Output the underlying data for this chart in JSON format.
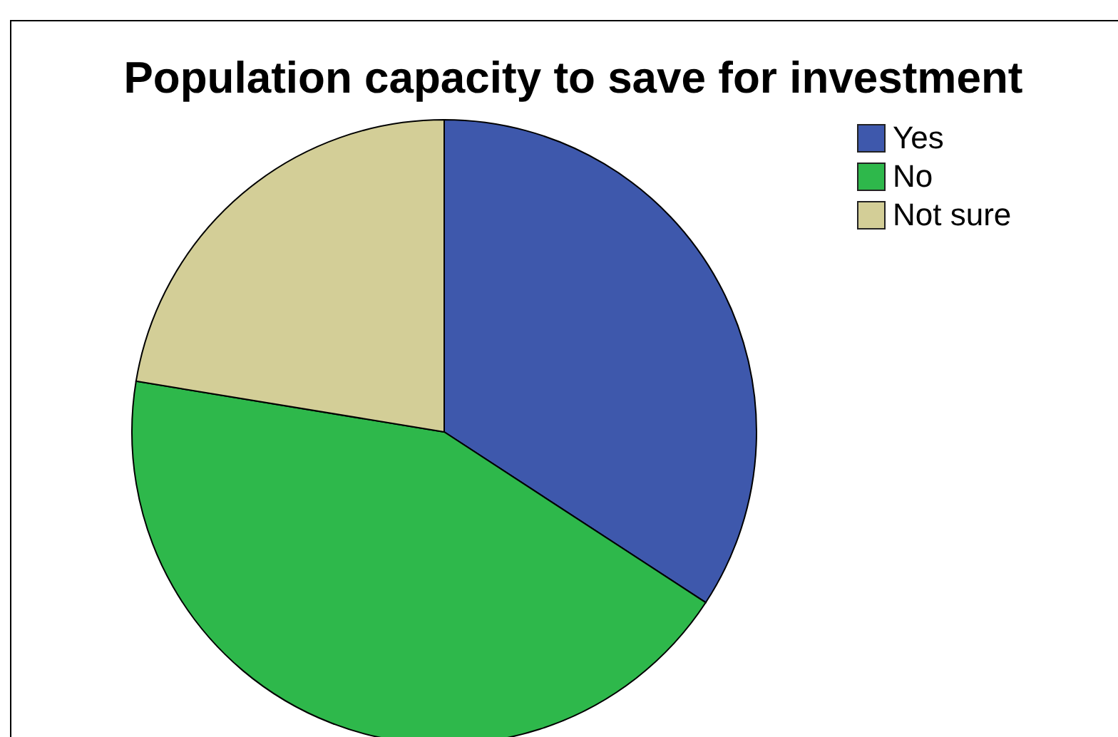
{
  "chart_data": {
    "type": "pie",
    "title": "Population capacity to save for investment",
    "categories": [
      "Yes",
      "No",
      "Not sure"
    ],
    "values": [
      34.2,
      43.4,
      22.4
    ],
    "colors": [
      "#3e58ac",
      "#2eb84b",
      "#d3ce97"
    ],
    "legend": "top right"
  }
}
